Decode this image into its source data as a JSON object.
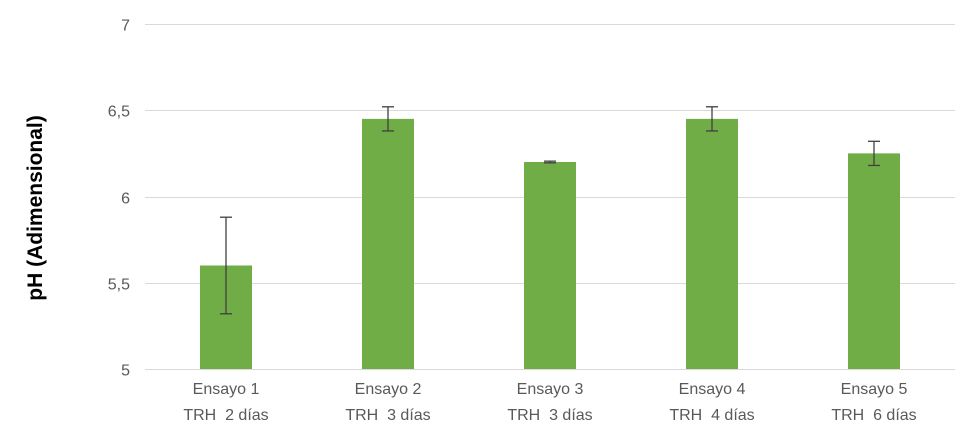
{
  "chart_data": {
    "type": "bar",
    "title": "",
    "xlabel": "",
    "ylabel": "pH (Adimensional)",
    "ylim": [
      5,
      7
    ],
    "yticks": [
      5,
      5.5,
      6,
      6.5,
      7
    ],
    "ytick_labels": [
      "5",
      "5,5",
      "6",
      "6,5",
      "7"
    ],
    "grid": true,
    "legend": "none",
    "categories": [
      [
        "Ensayo 1",
        "TRH  2 días"
      ],
      [
        "Ensayo 2",
        "TRH  3 días"
      ],
      [
        "Ensayo 3",
        "TRH  3 días"
      ],
      [
        "Ensayo 4",
        "TRH  4 días"
      ],
      [
        "Ensayo 5",
        "TRH  6 días"
      ]
    ],
    "series": [
      {
        "values": [
          5.6,
          6.45,
          6.2,
          6.45,
          6.25
        ],
        "error": [
          0.28,
          0.07,
          0.005,
          0.07,
          0.07
        ],
        "color": "#70ad47"
      }
    ],
    "colors": {
      "bar": "#70ad47",
      "grid": "#d9d9d9",
      "error_bar": "#404040",
      "tick_text": "#595959",
      "axis_title": "#000000"
    }
  }
}
